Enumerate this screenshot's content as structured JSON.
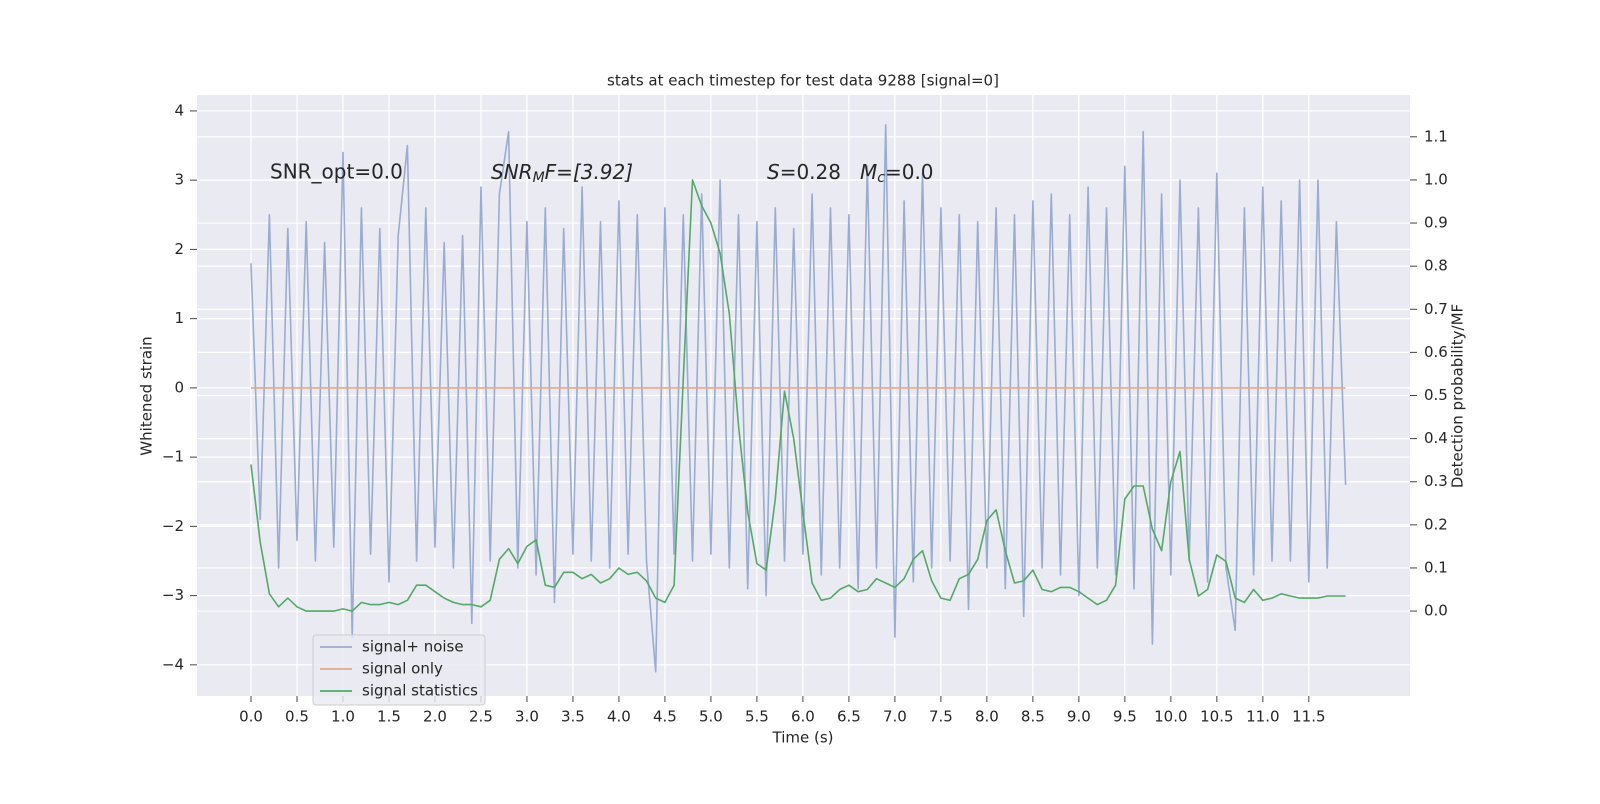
{
  "chart_data": {
    "type": "line",
    "title": "stats at each timestep for test data 9288 [signal=0]",
    "xlabel": "Time (s)",
    "ylabel": "Whitened strain",
    "y2label": "Detection probability/MF",
    "annotations": [
      [
        "SNR_opt=0.0"
      ],
      [
        "SNR",
        "M",
        "F=[3.92]"
      ],
      [
        "S",
        "=0.28"
      ],
      [
        "M",
        "c",
        "=0.0"
      ]
    ],
    "legend": "lower left",
    "grid": true,
    "xlim": [
      -0.587,
      12.6
    ],
    "ylim": [
      -4.45,
      4.23
    ],
    "y2lim": [
      -0.197,
      1.197
    ],
    "xticks": [
      {
        "value": 0,
        "label": "0.0"
      },
      0.5,
      {
        "value": 1,
        "label": "1.0"
      },
      1.5,
      {
        "value": 2,
        "label": "2.0"
      },
      2.5,
      {
        "value": 3,
        "label": "3.0"
      },
      3.5,
      {
        "value": 4,
        "label": "4.0"
      },
      4.5,
      {
        "value": 5,
        "label": "5.0"
      },
      5.5,
      {
        "value": 6,
        "label": "6.0"
      },
      6.5,
      {
        "value": 7,
        "label": "7.0"
      },
      7.5,
      {
        "value": 8,
        "label": "8.0"
      },
      8.5,
      {
        "value": 9,
        "label": "9.0"
      },
      9.5,
      {
        "value": 10,
        "label": "10.0"
      },
      10.5,
      {
        "value": 11,
        "label": "11.0"
      },
      11.5
    ],
    "yticks": [
      {
        "value": -4,
        "label": "−4"
      },
      {
        "value": -3,
        "label": "−3"
      },
      {
        "value": -2,
        "label": "−2"
      },
      {
        "value": -1,
        "label": "−1"
      },
      0,
      1,
      2,
      3,
      4
    ],
    "y2ticks": [
      {
        "value": 0,
        "label": "0.0"
      },
      0.1,
      0.2,
      0.3,
      0.4,
      0.5,
      0.6,
      0.7,
      0.8,
      0.9,
      {
        "value": 1,
        "label": "1.0"
      },
      1.1
    ],
    "x": [
      0.0,
      0.1,
      0.2,
      0.3,
      0.4,
      0.5,
      0.6,
      0.7,
      0.8,
      0.9,
      1.0,
      1.1,
      1.2,
      1.3,
      1.4,
      1.5,
      1.6,
      1.7,
      1.8,
      1.9,
      2.0,
      2.1,
      2.2,
      2.3,
      2.4,
      2.5,
      2.6,
      2.7,
      2.8,
      2.9,
      3.0,
      3.1,
      3.2,
      3.3,
      3.4,
      3.5,
      3.6,
      3.7,
      3.8,
      3.9,
      4.0,
      4.1,
      4.2,
      4.3,
      4.4,
      4.5,
      4.6,
      4.7,
      4.8,
      4.9,
      5.0,
      5.1,
      5.2,
      5.3,
      5.4,
      5.5,
      5.6,
      5.7,
      5.8,
      5.9,
      6.0,
      6.1,
      6.2,
      6.3,
      6.4,
      6.5,
      6.6,
      6.7,
      6.8,
      6.9,
      7.0,
      7.1,
      7.2,
      7.3,
      7.4,
      7.5,
      7.6,
      7.7,
      7.8,
      7.9,
      8.0,
      8.1,
      8.2,
      8.3,
      8.4,
      8.5,
      8.6,
      8.7,
      8.8,
      8.9,
      9.0,
      9.1,
      9.2,
      9.3,
      9.4,
      9.5,
      9.6,
      9.7,
      9.8,
      9.9,
      10.0,
      10.1,
      10.2,
      10.3,
      10.4,
      10.5,
      10.6,
      10.7,
      10.8,
      10.9,
      11.0,
      11.1,
      11.2,
      11.3,
      11.4,
      11.5,
      11.6,
      11.7,
      11.8,
      11.9
    ],
    "series": [
      {
        "name": "signal+ noise",
        "color": "#99acd1",
        "axis": "y",
        "values": [
          1.8,
          -1.9,
          2.5,
          -2.6,
          2.3,
          -2.2,
          2.4,
          -2.5,
          2.1,
          -2.3,
          3.4,
          -3.6,
          2.6,
          -2.4,
          2.3,
          -2.8,
          2.2,
          3.5,
          -2.5,
          2.6,
          -2.3,
          2.1,
          -2.6,
          2.2,
          -3.4,
          2.9,
          -2.5,
          2.8,
          3.7,
          -2.6,
          2.4,
          -2.7,
          2.6,
          -3.1,
          2.3,
          -2.4,
          2.9,
          -2.5,
          2.4,
          -2.6,
          2.7,
          -2.4,
          2.5,
          -2.5,
          -4.1,
          2.6,
          -2.4,
          2.5,
          -2.5,
          2.8,
          -2.4,
          3.0,
          -2.6,
          2.5,
          -2.9,
          2.4,
          -3.0,
          2.6,
          -2.5,
          2.3,
          -2.4,
          2.8,
          -2.7,
          2.6,
          -2.6,
          2.5,
          -2.9,
          3.2,
          -2.6,
          3.8,
          -3.6,
          2.7,
          -2.8,
          3.1,
          -2.6,
          2.6,
          -2.5,
          2.5,
          -3.2,
          2.4,
          -2.6,
          2.6,
          -2.9,
          2.5,
          -3.3,
          2.7,
          -2.6,
          2.8,
          -2.7,
          2.5,
          -3.0,
          2.9,
          -2.6,
          2.6,
          -2.7,
          3.2,
          -2.9,
          3.7,
          -3.7,
          2.8,
          -2.7,
          3.0,
          -2.5,
          2.6,
          -2.8,
          3.1,
          -2.6,
          -3.5,
          2.6,
          -2.7,
          2.9,
          -2.5,
          2.7,
          -2.5,
          3.0,
          -2.8,
          3.0,
          -2.6,
          2.4,
          -1.4
        ]
      },
      {
        "name": "signal only",
        "color": "#e3a98c",
        "axis": "y",
        "values": [
          0,
          0,
          0,
          0,
          0,
          0,
          0,
          0,
          0,
          0,
          0,
          0,
          0,
          0,
          0,
          0,
          0,
          0,
          0,
          0,
          0,
          0,
          0,
          0,
          0,
          0,
          0,
          0,
          0,
          0,
          0,
          0,
          0,
          0,
          0,
          0,
          0,
          0,
          0,
          0,
          0,
          0,
          0,
          0,
          0,
          0,
          0,
          0,
          0,
          0,
          0,
          0,
          0,
          0,
          0,
          0,
          0,
          0,
          0,
          0,
          0,
          0,
          0,
          0,
          0,
          0,
          0,
          0,
          0,
          0,
          0,
          0,
          0,
          0,
          0,
          0,
          0,
          0,
          0,
          0,
          0,
          0,
          0,
          0,
          0,
          0,
          0,
          0,
          0,
          0,
          0,
          0,
          0,
          0,
          0,
          0,
          0,
          0,
          0,
          0,
          0,
          0,
          0,
          0,
          0,
          0,
          0,
          0,
          0,
          0,
          0,
          0,
          0,
          0,
          0,
          0,
          0,
          0,
          0,
          0
        ]
      },
      {
        "name": "signal statistics",
        "color": "#55a868",
        "axis": "y2",
        "values": [
          0.34,
          0.16,
          0.04,
          0.01,
          0.03,
          0.01,
          0.0,
          0.0,
          0.0,
          0.0,
          0.005,
          0.0,
          0.02,
          0.015,
          0.015,
          0.02,
          0.015,
          0.025,
          0.06,
          0.06,
          0.045,
          0.03,
          0.02,
          0.015,
          0.015,
          0.01,
          0.025,
          0.12,
          0.145,
          0.11,
          0.15,
          0.165,
          0.06,
          0.055,
          0.09,
          0.09,
          0.075,
          0.085,
          0.065,
          0.075,
          0.1,
          0.085,
          0.09,
          0.07,
          0.03,
          0.02,
          0.06,
          0.54,
          1.0,
          0.94,
          0.9,
          0.83,
          0.69,
          0.43,
          0.23,
          0.11,
          0.095,
          0.26,
          0.51,
          0.4,
          0.23,
          0.065,
          0.025,
          0.03,
          0.05,
          0.06,
          0.045,
          0.05,
          0.075,
          0.065,
          0.055,
          0.075,
          0.12,
          0.14,
          0.07,
          0.03,
          0.025,
          0.075,
          0.085,
          0.12,
          0.21,
          0.235,
          0.14,
          0.065,
          0.07,
          0.095,
          0.05,
          0.045,
          0.055,
          0.055,
          0.045,
          0.03,
          0.015,
          0.025,
          0.06,
          0.26,
          0.29,
          0.29,
          0.19,
          0.14,
          0.3,
          0.37,
          0.12,
          0.035,
          0.05,
          0.13,
          0.115,
          0.03,
          0.02,
          0.05,
          0.025,
          0.03,
          0.04,
          0.035,
          0.03,
          0.03,
          0.03,
          0.035,
          0.035,
          0.035
        ]
      }
    ]
  }
}
